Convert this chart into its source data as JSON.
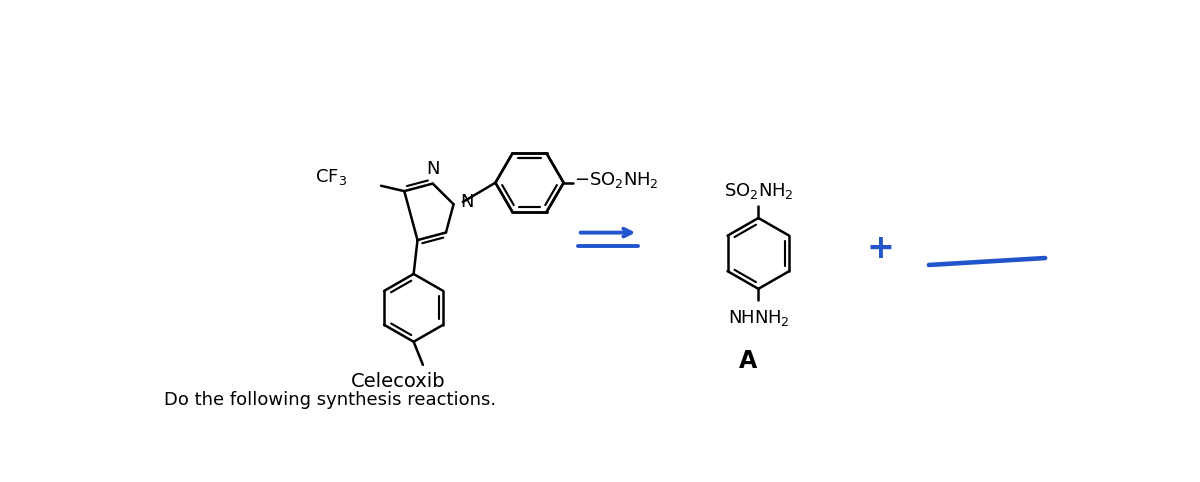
{
  "bg_color": "#ffffff",
  "text_color": "#000000",
  "blue_color": "#2255cc",
  "title_text": "Do the following synthesis reactions.",
  "celecoxib_label": "Celecoxib",
  "label_A": "A",
  "cf3_label": "CF₃",
  "figsize": [
    12.0,
    4.82
  ],
  "dpi": 100,
  "lw_mol": 1.8,
  "lw_blue": 2.8,
  "fontsize_mol": 13,
  "fontsize_label": 14,
  "fontsize_title": 13
}
